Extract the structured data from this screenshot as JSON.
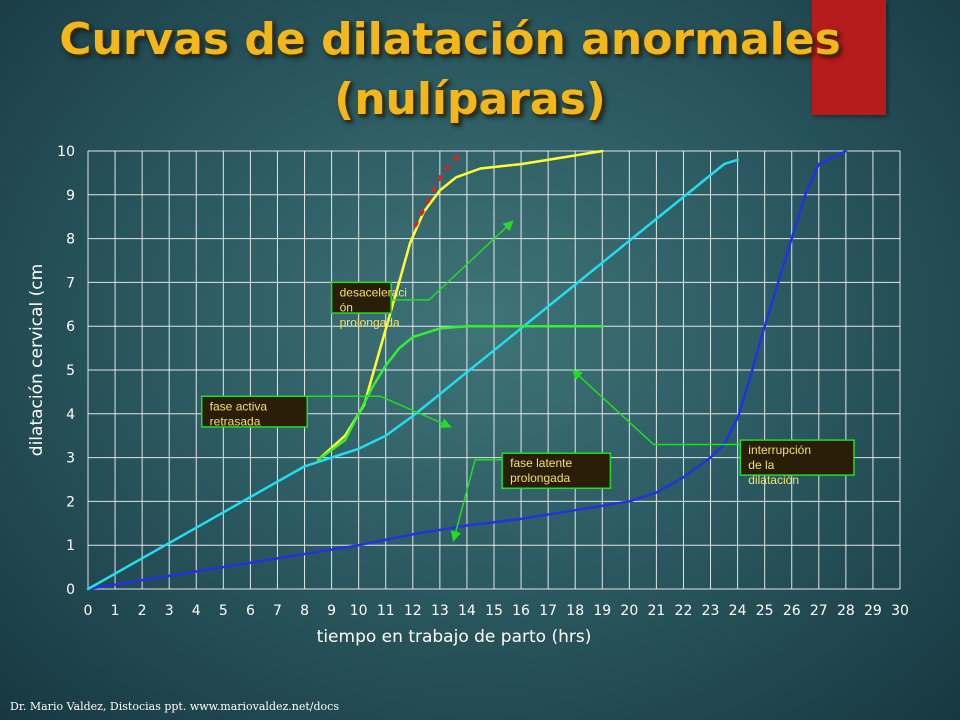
{
  "slide": {
    "title_line1": "Curvas de dilatación anormales",
    "title_line2": "(nulíparas)",
    "footer": "Dr. Mario Valdez, Distocias ppt. www.mariovaldez.net/docs",
    "accent_red": "#b71c1c",
    "title_color": "#f1b71b"
  },
  "chart_data": {
    "type": "line",
    "xlabel": "tiempo en trabajo de parto (hrs)",
    "ylabel": "dilatación cervical (cm",
    "xlim": [
      0,
      30
    ],
    "ylim": [
      0,
      10
    ],
    "x_ticks": [
      0,
      1,
      2,
      3,
      4,
      5,
      6,
      7,
      8,
      9,
      10,
      11,
      12,
      13,
      14,
      15,
      16,
      17,
      18,
      19,
      20,
      21,
      22,
      23,
      24,
      25,
      26,
      27,
      28,
      29,
      30
    ],
    "y_ticks": [
      0,
      1,
      2,
      3,
      4,
      5,
      6,
      7,
      8,
      9,
      10
    ],
    "grid": true,
    "series": [
      {
        "color": "#2233dd",
        "points": [
          [
            0,
            0
          ],
          [
            2,
            0.2
          ],
          [
            4,
            0.4
          ],
          [
            6,
            0.6
          ],
          [
            8,
            0.8
          ],
          [
            10,
            1.0
          ],
          [
            12,
            1.25
          ],
          [
            14,
            1.45
          ],
          [
            16,
            1.6
          ],
          [
            18,
            1.8
          ],
          [
            20,
            2.0
          ],
          [
            21,
            2.2
          ],
          [
            22,
            2.55
          ],
          [
            23,
            3.0
          ],
          [
            23.5,
            3.3
          ],
          [
            24,
            3.9
          ],
          [
            24.5,
            4.9
          ],
          [
            25,
            6.0
          ],
          [
            25.5,
            7.0
          ],
          [
            26,
            8.0
          ],
          [
            26.5,
            9.0
          ],
          [
            27,
            9.7
          ],
          [
            27.5,
            9.85
          ],
          [
            28,
            10
          ]
        ]
      },
      {
        "color": "#22ddee",
        "points": [
          [
            0,
            0
          ],
          [
            2,
            0.7
          ],
          [
            4,
            1.4
          ],
          [
            6,
            2.1
          ],
          [
            8,
            2.8
          ],
          [
            9,
            3.0
          ],
          [
            10,
            3.2
          ],
          [
            11,
            3.5
          ],
          [
            12,
            3.95
          ],
          [
            13,
            4.45
          ],
          [
            14,
            4.95
          ],
          [
            15,
            5.45
          ],
          [
            16,
            5.95
          ],
          [
            17,
            6.45
          ],
          [
            18,
            6.95
          ],
          [
            19,
            7.45
          ],
          [
            20,
            7.95
          ],
          [
            21,
            8.45
          ],
          [
            22,
            8.95
          ],
          [
            23,
            9.45
          ],
          [
            23.5,
            9.7
          ],
          [
            24,
            9.8
          ]
        ]
      },
      {
        "color": "#ffff33",
        "points": [
          [
            8.5,
            2.95
          ],
          [
            9.5,
            3.5
          ],
          [
            10.2,
            4.2
          ],
          [
            10.8,
            5.5
          ],
          [
            11.4,
            6.8
          ],
          [
            11.9,
            7.9
          ],
          [
            12.4,
            8.6
          ],
          [
            13,
            9.1
          ],
          [
            13.6,
            9.4
          ],
          [
            14.5,
            9.6
          ],
          [
            16,
            9.7
          ],
          [
            17.5,
            9.85
          ],
          [
            19,
            10
          ]
        ]
      },
      {
        "color": "#33ee33",
        "points": [
          [
            8.5,
            2.95
          ],
          [
            9.5,
            3.4
          ],
          [
            10,
            4.0
          ],
          [
            10.5,
            4.6
          ],
          [
            11,
            5.1
          ],
          [
            11.5,
            5.5
          ],
          [
            12,
            5.75
          ],
          [
            13,
            5.95
          ],
          [
            14,
            6.0
          ],
          [
            16,
            6.0
          ],
          [
            19,
            6.0
          ]
        ]
      },
      {
        "color": "#dd2222",
        "dashed": true,
        "points": [
          [
            12.1,
            8.3
          ],
          [
            12.6,
            8.9
          ],
          [
            13.1,
            9.5
          ],
          [
            13.7,
            9.9
          ]
        ]
      }
    ],
    "annotations": [
      {
        "lines": [
          "desaceleraci",
          "ón",
          "prolongada"
        ],
        "box": [
          9,
          6.3,
          11.2,
          7.0
        ],
        "arrow": [
          [
            11.2,
            6.6
          ],
          [
            12.6,
            6.6
          ],
          [
            15.7,
            8.4
          ]
        ]
      },
      {
        "lines": [
          "fase activa",
          "retrasada"
        ],
        "box": [
          4.2,
          3.7,
          8.1,
          4.4
        ],
        "arrow": [
          [
            8.1,
            4.4
          ],
          [
            10.8,
            4.4
          ],
          [
            13.4,
            3.7
          ]
        ]
      },
      {
        "lines": [
          "fase latente",
          "prolongada"
        ],
        "box": [
          15.3,
          2.3,
          19.3,
          3.1
        ],
        "arrow": [
          [
            15.3,
            2.95
          ],
          [
            14.3,
            2.95
          ],
          [
            13.5,
            1.1
          ]
        ]
      },
      {
        "lines": [
          "interrupción",
          "de la",
          "dilatación"
        ],
        "box": [
          24.1,
          2.6,
          28.3,
          3.4
        ],
        "arrow": [
          [
            24.1,
            3.3
          ],
          [
            20.9,
            3.3
          ],
          [
            17.9,
            5.0
          ]
        ]
      }
    ]
  }
}
